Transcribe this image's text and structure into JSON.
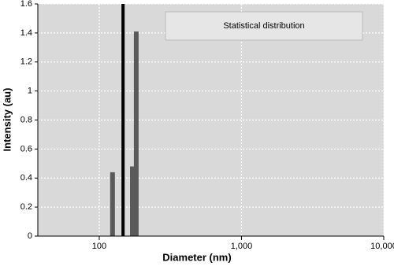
{
  "chart_data": {
    "type": "bar",
    "x_scale": "log",
    "x_label": "Diameter (nm)",
    "y_label": "Intensity (au)",
    "xlim": [
      37,
      10000
    ],
    "xticks": [
      100,
      {
        "value": 1000,
        "label": "1,000"
      },
      {
        "value": 10000,
        "label": "10,000"
      }
    ],
    "ylim": [
      0,
      1.6
    ],
    "yticks": [
      0,
      0.2,
      0.4,
      0.6,
      0.8,
      1,
      1.2,
      1.4,
      1.6
    ],
    "grid": true,
    "series": [
      {
        "name": "Statistical distribution",
        "color": "#5a5a5a",
        "x": [
          124,
          171,
          182
        ],
        "values": [
          0.44,
          0.48,
          1.41
        ]
      },
      {
        "color": "#000000",
        "x": [
          147
        ],
        "values": [
          1.6
        ]
      }
    ]
  }
}
